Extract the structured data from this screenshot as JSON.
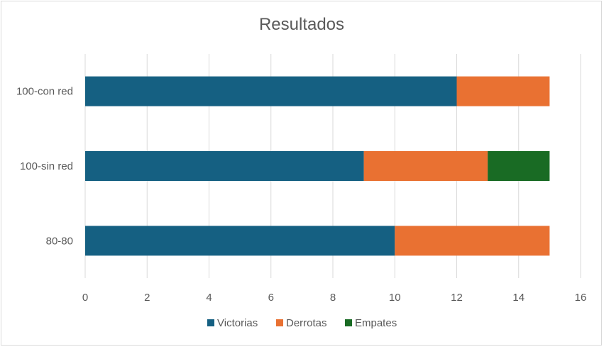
{
  "chart_data": {
    "type": "bar",
    "orientation": "horizontal",
    "stacked": true,
    "title": "Resultados",
    "categories": [
      "100-con red",
      "100-sin red",
      "80-80"
    ],
    "series": [
      {
        "name": "Victorias",
        "color": "#156082",
        "values": [
          12,
          9,
          10
        ]
      },
      {
        "name": "Derrotas",
        "color": "#E97132",
        "values": [
          3,
          4,
          5
        ]
      },
      {
        "name": "Empates",
        "color": "#196B24",
        "values": [
          0,
          2,
          0
        ]
      }
    ],
    "xlim": [
      0,
      16
    ],
    "xticks": [
      0,
      2,
      4,
      6,
      8,
      10,
      12,
      14,
      16
    ],
    "grid": true,
    "legend_position": "bottom"
  }
}
